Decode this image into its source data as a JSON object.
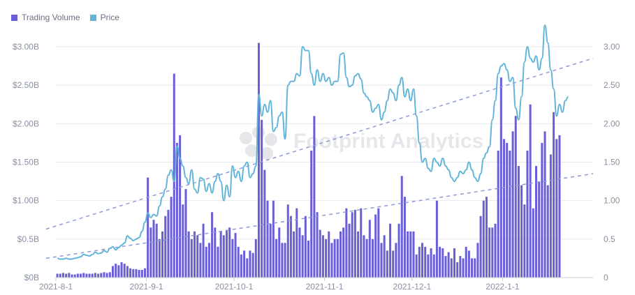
{
  "chart_data": {
    "type": "bar+line",
    "legend": [
      "Trading Volume",
      "Price"
    ],
    "left_axis": {
      "ticks": [
        "$0B",
        "$0.5B",
        "$1.00B",
        "$1.50B",
        "$2.00B",
        "$2.50B",
        "$3.00B"
      ],
      "ylim": [
        0,
        3.0
      ]
    },
    "right_axis": {
      "ticks": [
        "0",
        "0.5",
        "1.00",
        "1.50",
        "2.00",
        "2.50",
        "3.00"
      ],
      "ylim": [
        0,
        3.0
      ]
    },
    "x_ticks": [
      "2021-8-1",
      "2021-9-1",
      "2021-10-1",
      "2021-11-1",
      "2021-12-1",
      "2022-1-1"
    ],
    "x_range": [
      "2021-08-01",
      "2022-01-31"
    ],
    "volume_series": [
      0.05,
      0.05,
      0.06,
      0.05,
      0.06,
      0.04,
      0.04,
      0.05,
      0.05,
      0.06,
      0.05,
      0.05,
      0.05,
      0.06,
      0.05,
      0.06,
      0.07,
      0.06,
      0.07,
      0.15,
      0.18,
      0.16,
      0.2,
      0.18,
      0.15,
      0.12,
      0.11,
      0.11,
      0.1,
      0.1,
      0.12,
      1.3,
      0.65,
      0.75,
      0.7,
      0.5,
      0.6,
      0.8,
      0.88,
      1.05,
      2.65,
      1.75,
      1.85,
      0.95,
      1.15,
      0.6,
      0.5,
      0.6,
      0.55,
      0.45,
      0.7,
      0.4,
      0.45,
      0.85,
      0.65,
      0.4,
      0.6,
      0.55,
      0.62,
      0.65,
      0.5,
      0.58,
      0.4,
      0.3,
      0.35,
      0.25,
      0.35,
      0.32,
      0.5,
      3.05,
      2.05,
      1.4,
      1.0,
      0.7,
      1.0,
      0.5,
      0.65,
      0.45,
      0.45,
      0.95,
      0.8,
      0.6,
      0.9,
      0.65,
      0.55,
      0.8,
      0.48,
      1.65,
      2.1,
      0.85,
      0.62,
      0.55,
      0.5,
      0.6,
      0.45,
      0.5,
      0.5,
      0.6,
      0.65,
      0.9,
      0.7,
      0.85,
      0.88,
      0.6,
      0.9,
      0.55,
      0.5,
      0.75,
      0.5,
      0.82,
      0.9,
      0.45,
      0.55,
      0.35,
      0.7,
      0.35,
      0.45,
      0.7,
      1.32,
      1.05,
      0.6,
      0.6,
      0.6,
      0.3,
      0.4,
      0.45,
      0.4,
      0.3,
      0.38,
      0.3,
      1.0,
      0.4,
      0.38,
      0.28,
      0.33,
      0.25,
      0.38,
      0.2,
      0.28,
      0.25,
      0.4,
      0.35,
      0.25,
      0.25,
      0.45,
      0.8,
      1.0,
      1.05,
      0.65,
      0.65,
      0.7,
      1.65,
      2.6,
      1.8,
      1.75,
      1.65,
      1.9,
      2.1,
      1.45,
      1.2,
      0.95,
      1.65,
      2.25,
      0.9,
      1.45,
      1.25,
      1.75,
      1.9,
      1.2,
      1.6,
      2.15,
      1.8,
      1.85
    ],
    "price_series": [
      0.25,
      0.24,
      0.24,
      0.25,
      0.24,
      0.24,
      0.25,
      0.26,
      0.27,
      0.3,
      0.29,
      0.28,
      0.3,
      0.33,
      0.31,
      0.32,
      0.35,
      0.33,
      0.38,
      0.4,
      0.36,
      0.39,
      0.42,
      0.45,
      0.54,
      0.51,
      0.48,
      0.5,
      0.52,
      0.6,
      0.72,
      0.84,
      0.78,
      0.82,
      0.8,
      0.93,
      1.05,
      1.15,
      1.33,
      1.4,
      1.25,
      1.71,
      1.55,
      1.45,
      1.3,
      1.22,
      1.4,
      1.15,
      1.1,
      1.3,
      1.28,
      1.12,
      1.22,
      1.1,
      1.25,
      1.35,
      1.25,
      1.0,
      1.2,
      1.05,
      1.45,
      1.3,
      1.38,
      1.25,
      1.45,
      1.5,
      1.3,
      1.35,
      1.45,
      2.38,
      2.1,
      2.25,
      2.15,
      2.3,
      1.9,
      1.95,
      2.1,
      2.15,
      1.8,
      2.5,
      2.55,
      2.55,
      2.65,
      2.62,
      3.0,
      2.95,
      2.95,
      2.65,
      2.5,
      2.7,
      2.55,
      2.65,
      2.55,
      2.6,
      2.5,
      2.55,
      2.55,
      2.9,
      2.92,
      2.6,
      2.48,
      2.5,
      2.62,
      2.65,
      2.58,
      2.4,
      2.35,
      2.3,
      2.15,
      2.2,
      2.25,
      2.05,
      2.15,
      2.3,
      2.45,
      2.4,
      2.3,
      2.5,
      2.6,
      2.35,
      2.45,
      2.3,
      2.45,
      2.1,
      1.75,
      1.5,
      1.55,
      1.42,
      1.38,
      1.55,
      1.5,
      1.45,
      1.55,
      1.45,
      1.4,
      1.3,
      1.25,
      1.3,
      1.38,
      1.35,
      1.4,
      1.5,
      1.4,
      1.3,
      1.25,
      1.35,
      1.55,
      1.62,
      1.7,
      2.05,
      2.3,
      2.65,
      2.75,
      2.78,
      2.7,
      2.55,
      2.6,
      2.2,
      2.05,
      2.35,
      2.8,
      3.0,
      2.85,
      2.8,
      2.88,
      2.7,
      2.85,
      3.28,
      3.05,
      2.7,
      2.45,
      2.1,
      2.25,
      2.15,
      2.3,
      2.35
    ],
    "trend_lines": [
      {
        "name": "volume-trend",
        "start": 0.25,
        "end": 1.35
      },
      {
        "name": "price-trend",
        "start": 0.63,
        "end": 2.85
      }
    ],
    "watermark": "Footprint Analytics",
    "colors": {
      "volume": "#6a5fd6",
      "price": "#62b5d8",
      "trend": "#8e9ad8",
      "grid": "#e8e9ef",
      "axis_text": "#8a8fa3"
    },
    "grid": true,
    "legend_position": "top-left"
  }
}
